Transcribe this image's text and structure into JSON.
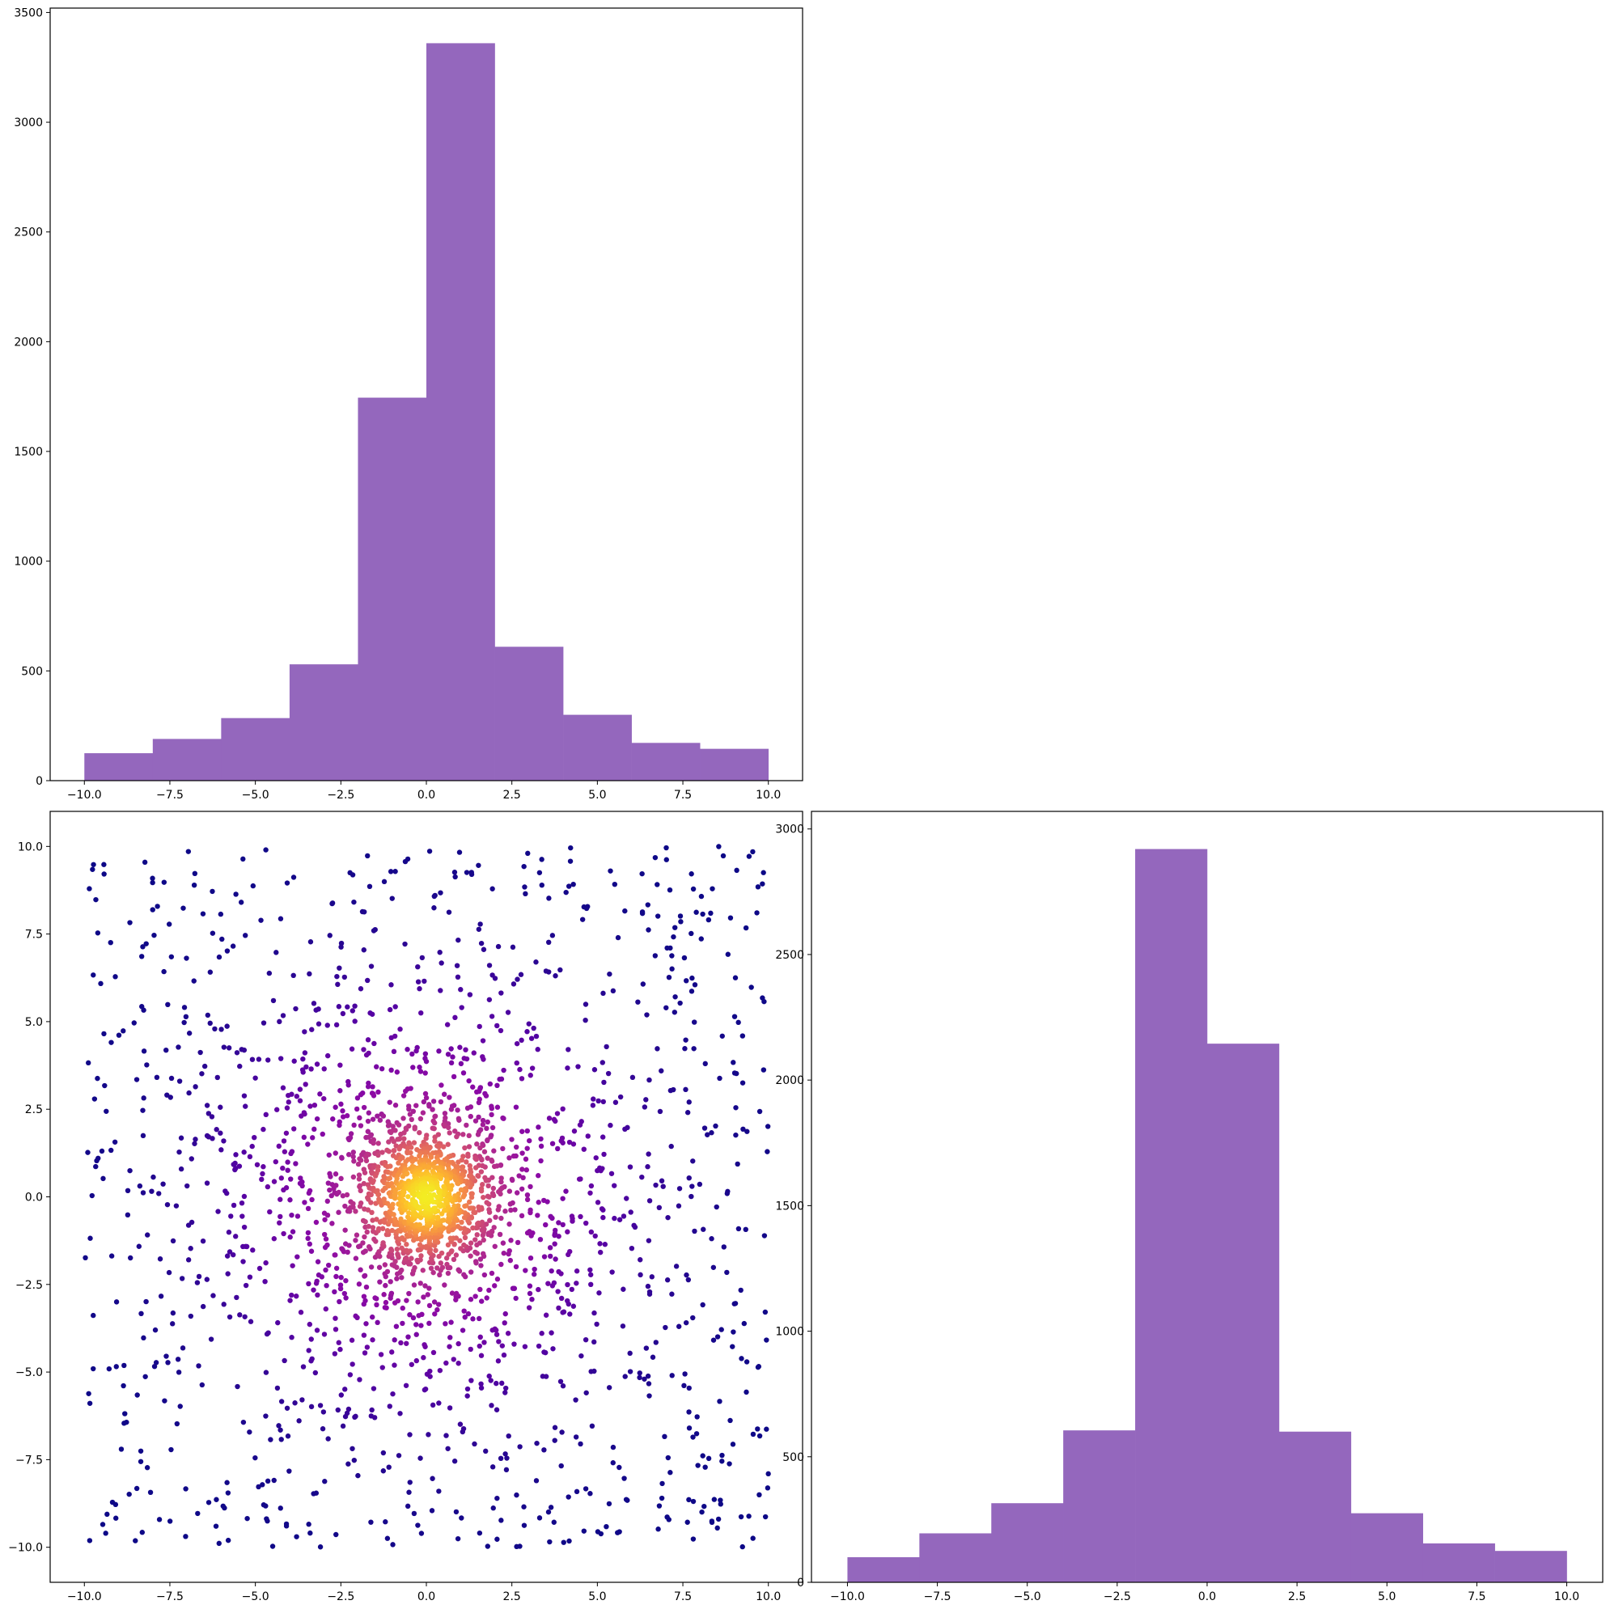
{
  "chart_data": [
    {
      "id": "top-hist",
      "type": "bar",
      "bar_style": "histogram",
      "bin_edges": [
        -10,
        -8,
        -6,
        -4,
        -2,
        0,
        2,
        4,
        6,
        8,
        10
      ],
      "values": [
        125,
        190,
        285,
        530,
        1745,
        3360,
        610,
        300,
        172,
        145
      ],
      "color": "#9467bd",
      "xlim": [
        -11,
        11
      ],
      "ylim": [
        0,
        3520
      ],
      "x_ticks": [
        -10.0,
        -7.5,
        -5.0,
        -2.5,
        0.0,
        2.5,
        5.0,
        7.5,
        10.0
      ],
      "x_tick_labels": [
        "−10.0",
        "−7.5",
        "−5.0",
        "−2.5",
        "0.0",
        "2.5",
        "5.0",
        "7.5",
        "10.0"
      ],
      "y_ticks": [
        0,
        500,
        1000,
        1500,
        2000,
        2500,
        3000,
        3500
      ],
      "y_tick_labels": [
        "0",
        "500",
        "1000",
        "1500",
        "2000",
        "2500",
        "3000",
        "3500"
      ],
      "grid": false
    },
    {
      "id": "scatter",
      "type": "scatter",
      "distribution": "point cloud over [-10,10] x [-10,10], densest at the origin; points colored by density",
      "n_points": 2600,
      "center": [
        0,
        0
      ],
      "colormap": [
        "#0d0887",
        "#5402a3",
        "#8b0aa5",
        "#b93289",
        "#db5c68",
        "#f48849",
        "#febd2a",
        "#f0f921"
      ],
      "xlim": [
        -11,
        11
      ],
      "ylim": [
        -11,
        11
      ],
      "x_ticks": [
        -10.0,
        -7.5,
        -5.0,
        -2.5,
        0.0,
        2.5,
        5.0,
        7.5,
        10.0
      ],
      "x_tick_labels": [
        "−10.0",
        "−7.5",
        "−5.0",
        "−2.5",
        "0.0",
        "2.5",
        "5.0",
        "7.5",
        "10.0"
      ],
      "y_ticks": [
        -10.0,
        -7.5,
        -5.0,
        -2.5,
        0.0,
        2.5,
        5.0,
        7.5,
        10.0
      ],
      "y_tick_labels": [
        "−10.0",
        "−7.5",
        "−5.0",
        "−2.5",
        "0.0",
        "2.5",
        "5.0",
        "7.5",
        "10.0"
      ],
      "grid": false
    },
    {
      "id": "right-hist",
      "type": "bar",
      "bar_style": "histogram",
      "bin_edges": [
        -10,
        -8,
        -6,
        -4,
        -2,
        0,
        2,
        4,
        6,
        8,
        10
      ],
      "values": [
        100,
        195,
        315,
        605,
        2920,
        2145,
        600,
        275,
        155,
        125
      ],
      "color": "#9467bd",
      "xlim": [
        -11,
        11
      ],
      "ylim": [
        0,
        3070
      ],
      "x_ticks": [
        -10.0,
        -7.5,
        -5.0,
        -2.5,
        0.0,
        2.5,
        5.0,
        7.5,
        10.0
      ],
      "x_tick_labels": [
        "−10.0",
        "−7.5",
        "−5.0",
        "−2.5",
        "0.0",
        "2.5",
        "5.0",
        "7.5",
        "10.0"
      ],
      "y_ticks": [
        0,
        500,
        1000,
        1500,
        2000,
        2500,
        3000
      ],
      "y_tick_labels": [
        "0",
        "500",
        "1000",
        "1500",
        "2000",
        "2500",
        "3000"
      ],
      "grid": false
    }
  ]
}
